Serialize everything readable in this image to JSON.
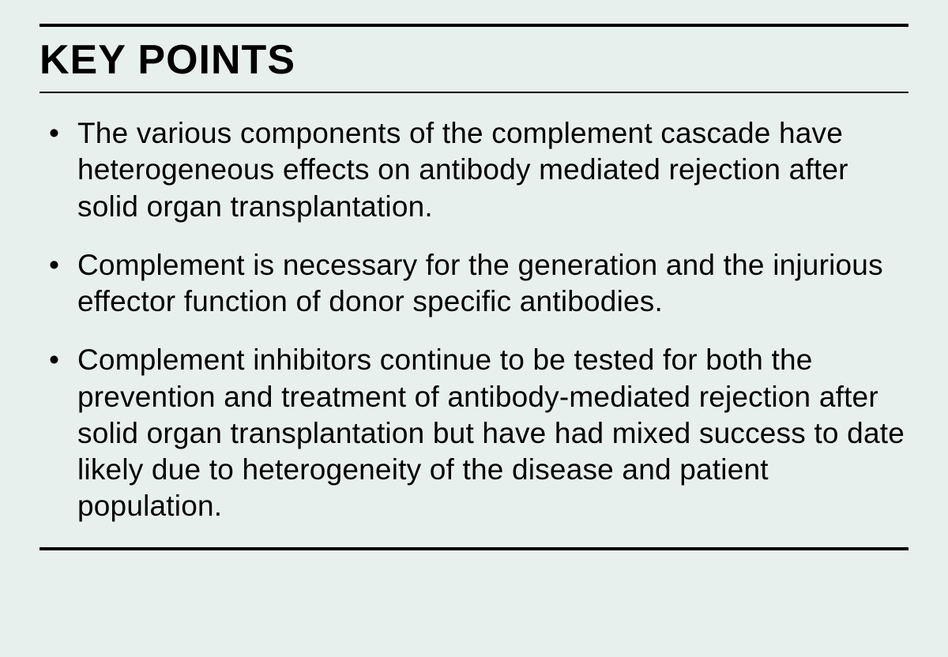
{
  "title": "KEY POINTS",
  "points": [
    "The various components of the complement cascade have heterogeneous effects on antibody mediated rejection after solid organ transplantation.",
    "Complement is necessary for the generation and the injurious effector function of donor specific antibodies.",
    "Complement inhibitors continue to be tested for both the prevention and treatment of antibody-mediated rejection after solid organ transplantation but have had mixed success to date likely due to heterogeneity of the disease and patient population."
  ],
  "colors": {
    "background": "#e8f0ee",
    "text": "#000000",
    "divider": "#000000"
  },
  "typography": {
    "title_fontsize": 52,
    "title_fontweight": 800,
    "body_fontsize": 37,
    "body_fontweight": 300
  }
}
